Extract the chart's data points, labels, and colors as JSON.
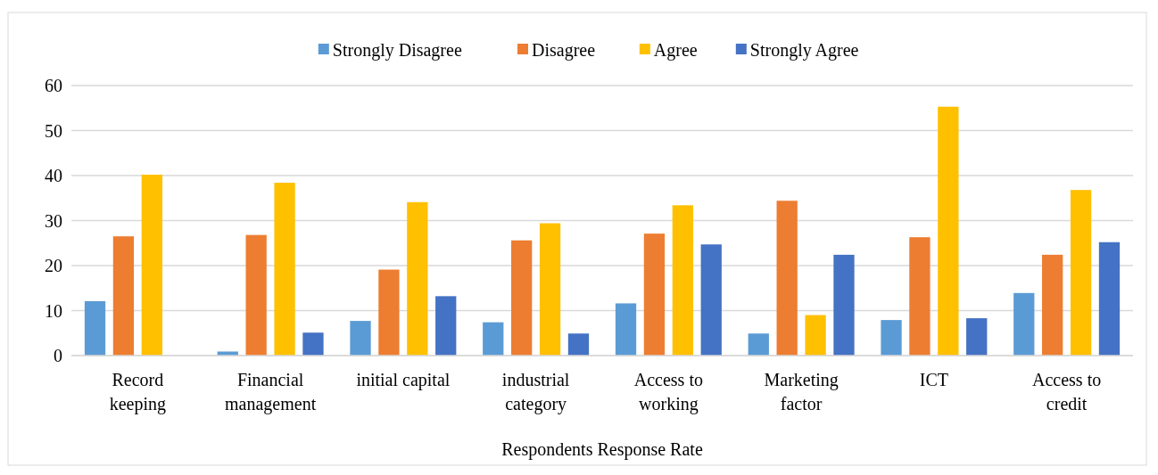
{
  "chart_data": {
    "type": "bar",
    "xlabel": "Respondents Response Rate",
    "categories": [
      "Record\nkeeping",
      "Financial\nmanagement",
      "initial capital",
      "industrial\ncategory",
      "Access to\nworking",
      "Marketing\nfactor",
      "ICT",
      "Access to\ncredit"
    ],
    "series": [
      {
        "name": "Strongly Disagree",
        "color": "#5b9bd5",
        "values": [
          12.1,
          0.9,
          7.7,
          7.4,
          11.6,
          4.9,
          7.9,
          13.9
        ]
      },
      {
        "name": "Disagree",
        "color": "#ed7d31",
        "values": [
          26.5,
          26.8,
          19.1,
          25.6,
          27.1,
          34.4,
          26.3,
          22.4
        ]
      },
      {
        "name": "Agree",
        "color": "#ffc000",
        "values": [
          40.2,
          38.4,
          34.1,
          29.4,
          33.4,
          9.0,
          55.3,
          36.8
        ]
      },
      {
        "name": "Strongly Agree",
        "color": "#4472c4",
        "values": [
          0,
          5.1,
          13.2,
          4.9,
          24.7,
          22.4,
          8.3,
          25.2
        ]
      }
    ],
    "ylim": [
      0,
      60
    ],
    "yticks": [
      0,
      10,
      20,
      30,
      40,
      50,
      60
    ],
    "grid": "y",
    "legend": "top"
  }
}
